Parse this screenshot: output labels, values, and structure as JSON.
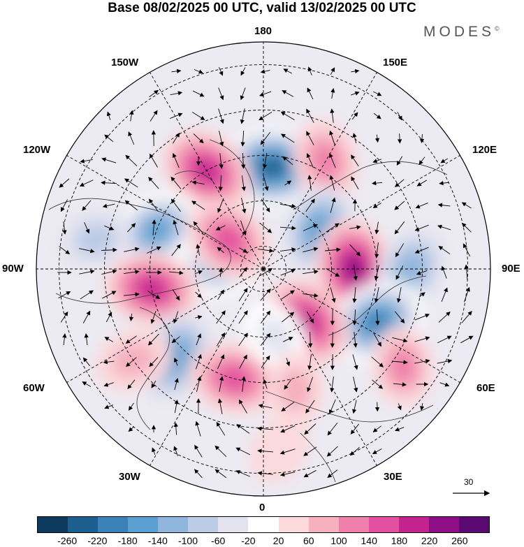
{
  "title": "Base 08/02/2025 00 UTC, valid 13/02/2025 00 UTC",
  "brand": "MODES",
  "brand_mark": "©",
  "longitude_labels": {
    "lon_180": "180",
    "lon_150w": "150W",
    "lon_150e": "150E",
    "lon_120w": "120W",
    "lon_120e": "120E",
    "lon_90w": "90W",
    "lon_90e": "90E",
    "lon_60w": "60W",
    "lon_60e": "60E",
    "lon_30w": "30W",
    "lon_30e": "30E",
    "lon_0": "0"
  },
  "vector_scale": {
    "label": "30",
    "icon": "arrow-right-icon"
  },
  "colorbar": {
    "colors": [
      "#0d3a5c",
      "#1c5f8f",
      "#3a82b8",
      "#5a9fcf",
      "#8fb6dc",
      "#bccbe6",
      "#e3e3f0",
      "#ffffff",
      "#fcd9dc",
      "#f6b0be",
      "#f07fab",
      "#e3509f",
      "#c4238f",
      "#8e0f85",
      "#5c0a73"
    ],
    "ticks": [
      "-260",
      "-220",
      "-180",
      "-140",
      "-100",
      "-60",
      "-20",
      "20",
      "60",
      "100",
      "140",
      "180",
      "220",
      "260"
    ]
  },
  "anomaly_centers": [
    {
      "lon": 175,
      "lat": 45,
      "value": -260
    },
    {
      "lon": -150,
      "lat": 40,
      "value": 200
    },
    {
      "lon": 150,
      "lat": 35,
      "value": 130
    },
    {
      "lon": 125,
      "lat": 60,
      "value": -150
    },
    {
      "lon": -110,
      "lat": 40,
      "value": -180
    },
    {
      "lon": -95,
      "lat": 70,
      "value": -140
    },
    {
      "lon": -130,
      "lat": 70,
      "value": 170
    },
    {
      "lon": 90,
      "lat": 50,
      "value": 230
    },
    {
      "lon": 90,
      "lat": 25,
      "value": -130
    },
    {
      "lon": 65,
      "lat": 35,
      "value": -220
    },
    {
      "lon": -80,
      "lat": 40,
      "value": 190
    },
    {
      "lon": 40,
      "lat": 60,
      "value": 200
    },
    {
      "lon": 55,
      "lat": 15,
      "value": 100
    },
    {
      "lon": -45,
      "lat": 35,
      "value": -170
    },
    {
      "lon": -55,
      "lat": 20,
      "value": 90
    },
    {
      "lon": -15,
      "lat": 40,
      "value": 170
    },
    {
      "lon": 10,
      "lat": 60,
      "value": -60
    },
    {
      "lon": 15,
      "lat": 35,
      "value": 70
    },
    {
      "lon": 5,
      "lat": 10,
      "value": 40
    },
    {
      "lon": -100,
      "lat": 15,
      "value": -70
    }
  ]
}
